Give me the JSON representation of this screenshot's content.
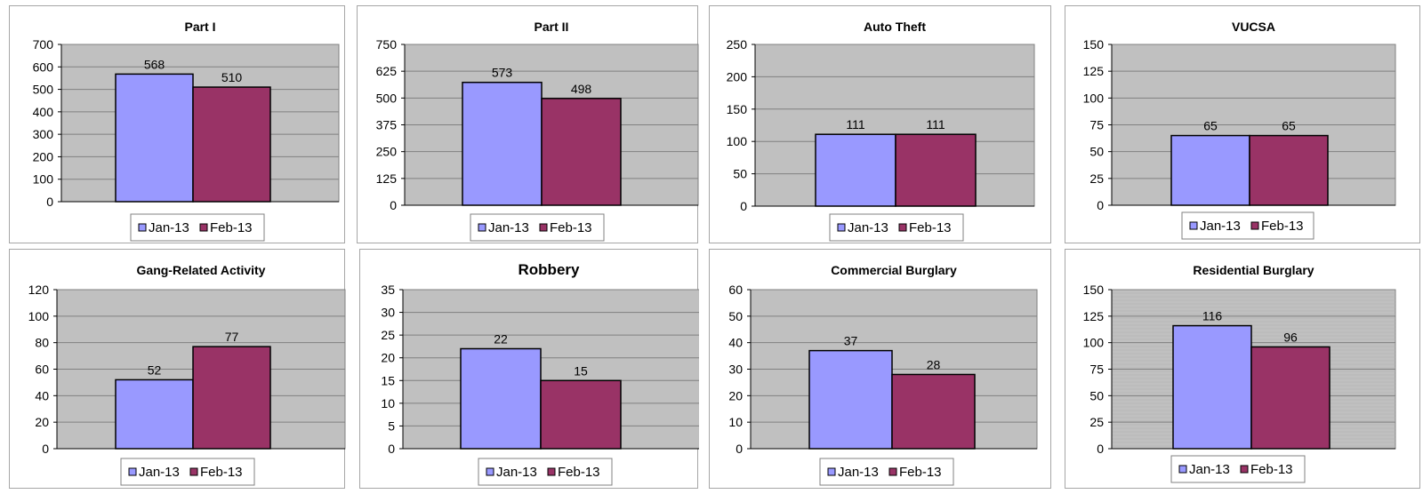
{
  "colors": {
    "jan": "#9999ff",
    "feb": "#993366",
    "plot_bg": "#c0c0c0",
    "grid": "#808080"
  },
  "chart_data": [
    {
      "type": "bar",
      "title": "Part I",
      "categories": [
        ""
      ],
      "series": [
        {
          "name": "Jan-13",
          "values": [
            568
          ]
        },
        {
          "name": "Feb-13",
          "values": [
            510
          ]
        }
      ],
      "ylim": [
        0,
        700
      ],
      "yticks": [
        0,
        100,
        200,
        300,
        400,
        500,
        600,
        700
      ],
      "legend": "bottom",
      "grid": true
    },
    {
      "type": "bar",
      "title": "Part II",
      "categories": [
        ""
      ],
      "series": [
        {
          "name": "Jan-13",
          "values": [
            573
          ]
        },
        {
          "name": "Feb-13",
          "values": [
            498
          ]
        }
      ],
      "ylim": [
        0,
        750
      ],
      "yticks": [
        0,
        125,
        250,
        375,
        500,
        625,
        750
      ],
      "legend": "bottom",
      "grid": true
    },
    {
      "type": "bar",
      "title": "Auto Theft",
      "categories": [
        ""
      ],
      "series": [
        {
          "name": "Jan-13",
          "values": [
            111
          ]
        },
        {
          "name": "Feb-13",
          "values": [
            111
          ]
        }
      ],
      "ylim": [
        0,
        250
      ],
      "yticks": [
        0,
        50,
        100,
        150,
        200,
        250
      ],
      "legend": "bottom",
      "grid": true
    },
    {
      "type": "bar",
      "title": "VUCSA",
      "categories": [
        ""
      ],
      "series": [
        {
          "name": "Jan-13",
          "values": [
            65
          ]
        },
        {
          "name": "Feb-13",
          "values": [
            65
          ]
        }
      ],
      "ylim": [
        0,
        150
      ],
      "yticks": [
        0,
        25,
        50,
        75,
        100,
        125,
        150
      ],
      "legend": "bottom",
      "grid": true
    },
    {
      "type": "bar",
      "title": "Gang-Related Activity",
      "categories": [
        ""
      ],
      "series": [
        {
          "name": "Jan-13",
          "values": [
            52
          ]
        },
        {
          "name": "Feb-13",
          "values": [
            77
          ]
        }
      ],
      "ylim": [
        0,
        120
      ],
      "yticks": [
        0,
        20,
        40,
        60,
        80,
        100,
        120
      ],
      "legend": "bottom",
      "grid": true
    },
    {
      "type": "bar",
      "title": "Robbery",
      "categories": [
        ""
      ],
      "series": [
        {
          "name": "Jan-13",
          "values": [
            22
          ]
        },
        {
          "name": "Feb-13",
          "values": [
            15
          ]
        }
      ],
      "ylim": [
        0,
        35
      ],
      "yticks": [
        0,
        5,
        10,
        15,
        20,
        25,
        30,
        35
      ],
      "legend": "bottom",
      "grid": true
    },
    {
      "type": "bar",
      "title": "Commercial Burglary",
      "categories": [
        ""
      ],
      "series": [
        {
          "name": "Jan-13",
          "values": [
            37
          ]
        },
        {
          "name": "Feb-13",
          "values": [
            28
          ]
        }
      ],
      "ylim": [
        0,
        60
      ],
      "yticks": [
        0,
        10,
        20,
        30,
        40,
        50,
        60
      ],
      "legend": "bottom",
      "grid": true
    },
    {
      "type": "bar",
      "title": "Residential Burglary",
      "categories": [
        ""
      ],
      "series": [
        {
          "name": "Jan-13",
          "values": [
            116
          ]
        },
        {
          "name": "Feb-13",
          "values": [
            96
          ]
        }
      ],
      "ylim": [
        0,
        150
      ],
      "yticks": [
        0,
        25,
        50,
        75,
        100,
        125,
        150
      ],
      "legend": "bottom",
      "grid": true
    }
  ]
}
